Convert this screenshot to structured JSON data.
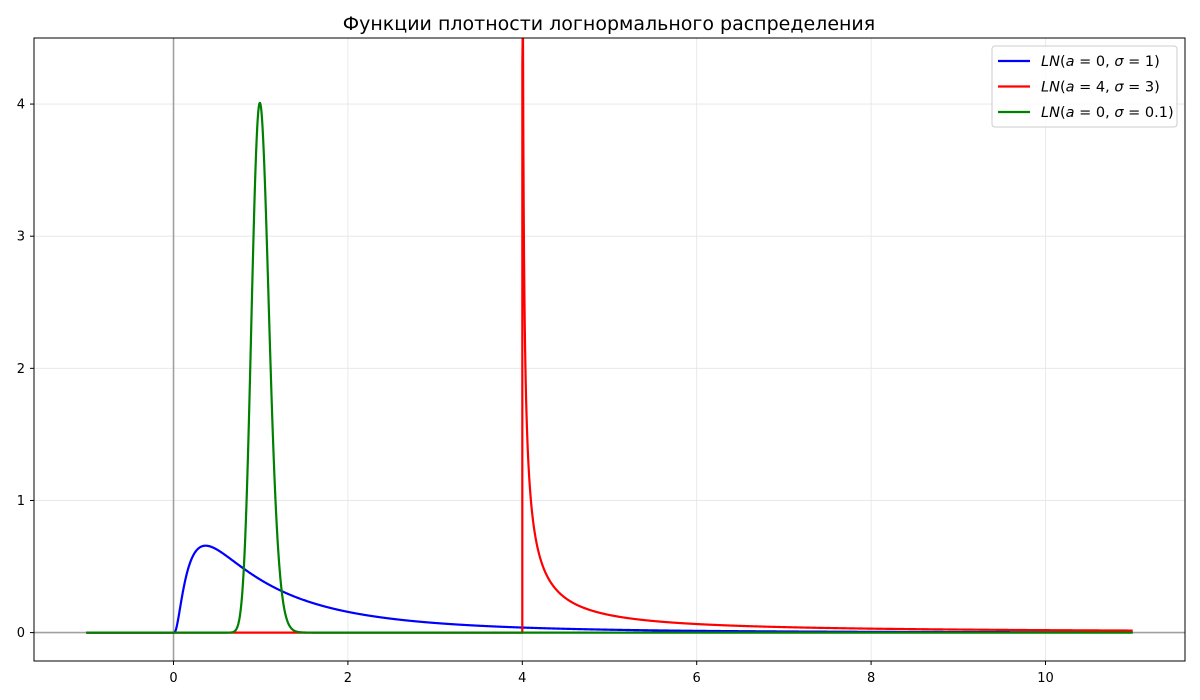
{
  "chart_data": {
    "type": "line",
    "title": "Функции плотности логнормального распределения",
    "xlabel": "",
    "ylabel": "",
    "xlim": [
      -1.6,
      11.6
    ],
    "ylim": [
      -0.215,
      4.5
    ],
    "x_ticks": [
      0,
      2,
      4,
      6,
      8,
      10
    ],
    "y_ticks": [
      0,
      1,
      2,
      3,
      4
    ],
    "grid": true,
    "legend_position": "top-right",
    "x_range": [
      -1,
      11
    ],
    "series": [
      {
        "name": "LN(a = 0, σ = 1)",
        "name_parts": [
          "LN",
          "(",
          "a",
          " = 0, ",
          "σ",
          " = 1)"
        ],
        "color": "#0000ff",
        "shift": 0,
        "mu": 0,
        "sigma": 1
      },
      {
        "name": "LN(a = 4, σ = 3)",
        "name_parts": [
          "LN",
          "(",
          "a",
          " = 4, ",
          "σ",
          " = 3)"
        ],
        "color": "#ff0000",
        "shift": 4,
        "mu": 0,
        "sigma": 3,
        "peak": 4.3
      },
      {
        "name": "LN(a = 0, σ = 0.1)",
        "name_parts": [
          "LN",
          "(",
          "a",
          " = 0, ",
          "σ",
          " = 0.1)"
        ],
        "color": "#008000",
        "shift": 0,
        "mu": 0,
        "sigma": 0.1
      }
    ]
  }
}
